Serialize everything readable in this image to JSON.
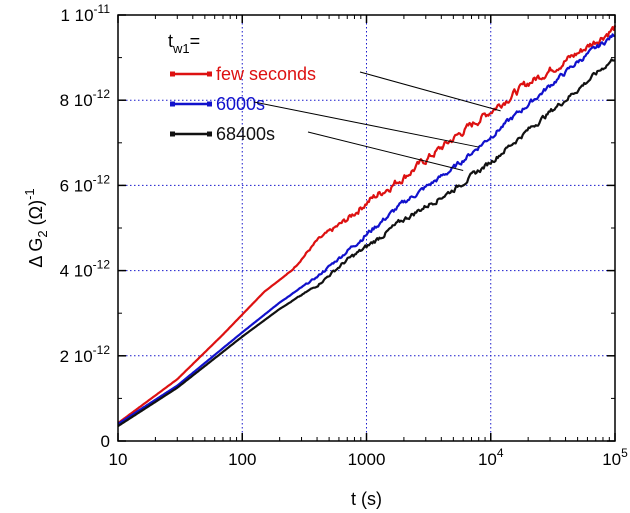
{
  "chart_data": {
    "type": "line",
    "xlabel": "t (s)",
    "ylabel_base": "Δ G",
    "ylabel_sub": "2",
    "ylabel_rest": " (Ω)",
    "ylabel_sup": "-1",
    "xscale": "log",
    "xlim": [
      10,
      100000
    ],
    "ylim": [
      0,
      1e-11
    ],
    "grid": true,
    "x_ticks": [
      {
        "value": 10,
        "label": "10"
      },
      {
        "value": 100,
        "label": "100"
      },
      {
        "value": 1000,
        "label": "1000"
      },
      {
        "value": 10000,
        "base": "10",
        "exp": "4"
      },
      {
        "value": 100000,
        "base": "10",
        "exp": "5"
      }
    ],
    "y_ticks": [
      {
        "value": 0,
        "mant": "0",
        "exp": ""
      },
      {
        "value": 2e-12,
        "mant": "2 10",
        "exp": "-12"
      },
      {
        "value": 4e-12,
        "mant": "4 10",
        "exp": "-12"
      },
      {
        "value": 6e-12,
        "mant": "6 10",
        "exp": "-12"
      },
      {
        "value": 8e-12,
        "mant": "8 10",
        "exp": "-12"
      },
      {
        "value": 1e-11,
        "mant": "1 10",
        "exp": "-11"
      }
    ],
    "legend_title_base": "t",
    "legend_title_sub": "w1",
    "legend_title_rest": "=",
    "legend_placement": "top-left",
    "series": [
      {
        "name": "few seconds",
        "color": "#dd1111",
        "points": [
          [
            10,
            4.2e-13
          ],
          [
            30,
            1.45e-12
          ],
          [
            70,
            2.5e-12
          ],
          [
            150,
            3.5e-12
          ],
          [
            250,
            4e-12
          ],
          [
            400,
            4.7e-12
          ],
          [
            700,
            5.2e-12
          ],
          [
            1000,
            5.6e-12
          ],
          [
            2000,
            6.2e-12
          ],
          [
            3000,
            6.6e-12
          ],
          [
            5000,
            7.1e-12
          ],
          [
            10000,
            7.75e-12
          ],
          [
            20000,
            8.4e-12
          ],
          [
            50000,
            9.1e-12
          ],
          [
            100000,
            9.7e-12
          ]
        ],
        "noise": 1.1e-13,
        "line_anchor": [
          12000,
          7.75e-12
        ]
      },
      {
        "name": "6000s",
        "color": "#1111cc",
        "points": [
          [
            10,
            4e-13
          ],
          [
            30,
            1.3e-12
          ],
          [
            100,
            2.55e-12
          ],
          [
            200,
            3.25e-12
          ],
          [
            400,
            3.85e-12
          ],
          [
            1000,
            4.85e-12
          ],
          [
            2000,
            5.6e-12
          ],
          [
            5000,
            6.4e-12
          ],
          [
            10000,
            7.15e-12
          ],
          [
            20000,
            7.9e-12
          ],
          [
            50000,
            8.9e-12
          ],
          [
            100000,
            9.55e-12
          ]
        ],
        "noise": 7e-14,
        "line_anchor": [
          8000,
          6.9e-12
        ]
      },
      {
        "name": "68400s",
        "color": "#111111",
        "points": [
          [
            10,
            3.5e-13
          ],
          [
            30,
            1.25e-12
          ],
          [
            100,
            2.45e-12
          ],
          [
            200,
            3.1e-12
          ],
          [
            400,
            3.65e-12
          ],
          [
            700,
            4.25e-12
          ],
          [
            1000,
            4.55e-12
          ],
          [
            2000,
            5.2e-12
          ],
          [
            5000,
            5.9e-12
          ],
          [
            10000,
            6.55e-12
          ],
          [
            20000,
            7.3e-12
          ],
          [
            50000,
            8.25e-12
          ],
          [
            100000,
            9e-12
          ]
        ],
        "noise": 7e-14,
        "line_anchor": [
          6000,
          6.35e-12
        ]
      }
    ]
  }
}
